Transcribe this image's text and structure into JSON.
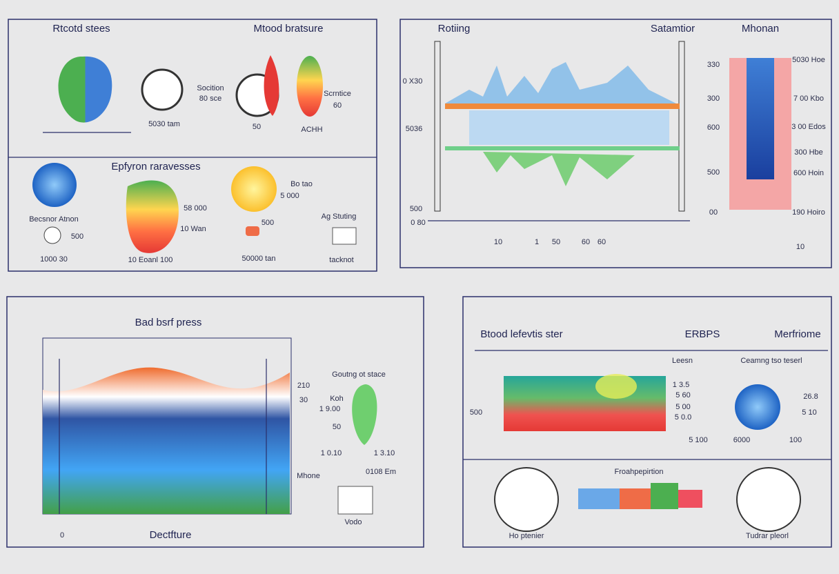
{
  "panels": [
    {
      "titles": [
        "Rtcotd stees",
        "Mtood bratsure",
        "Epfyron raravesses"
      ],
      "labels": [
        "Socition",
        "80 sce",
        "5030 tam",
        "50",
        "Scrntice",
        "60",
        "ACHH",
        "Becsnor Atnon",
        "500",
        "1000 30",
        "58 000",
        "10 Wan",
        "10 Eoanl 100",
        "Bo tao",
        "5 000",
        "500",
        "50000 tan",
        "Ag Stuting",
        "tacknot"
      ]
    },
    {
      "titles": [
        "Rotiing",
        "Satamtior",
        "Mhonan"
      ],
      "labels": [
        "0 X30",
        "5036",
        "500",
        "0 80",
        "10",
        "1",
        "50",
        "60",
        "60",
        "330",
        "300",
        "600",
        "500",
        "00",
        "5030 Hoe",
        "7 00 Kbo",
        "3 00 Edos",
        "300 Hbe",
        "600 Hoin",
        "190 Hoiro",
        "10"
      ]
    },
    {
      "titles": [
        "Bad bsrf press",
        "Dectfture"
      ],
      "labels": [
        "0",
        "210",
        "30",
        "Koh",
        "1 9.00",
        "50",
        "Goutng ot stace",
        "1 0.10",
        "1 3.10",
        "0108 Em",
        "Mhone",
        "Vodo"
      ]
    },
    {
      "titles": [
        "Btood lefevtis ster",
        "ERBPS",
        "Merfriome"
      ],
      "labels": [
        "Leesn",
        "Ceamng tso teserl",
        "500",
        "1 3.5",
        "5 60",
        "5 00",
        "5 0.0",
        "5 100",
        "26.8",
        "5 10",
        "6000",
        "100",
        "Froahpepirtion",
        "Ho ptenier",
        "Tudrar pleorl"
      ]
    }
  ]
}
